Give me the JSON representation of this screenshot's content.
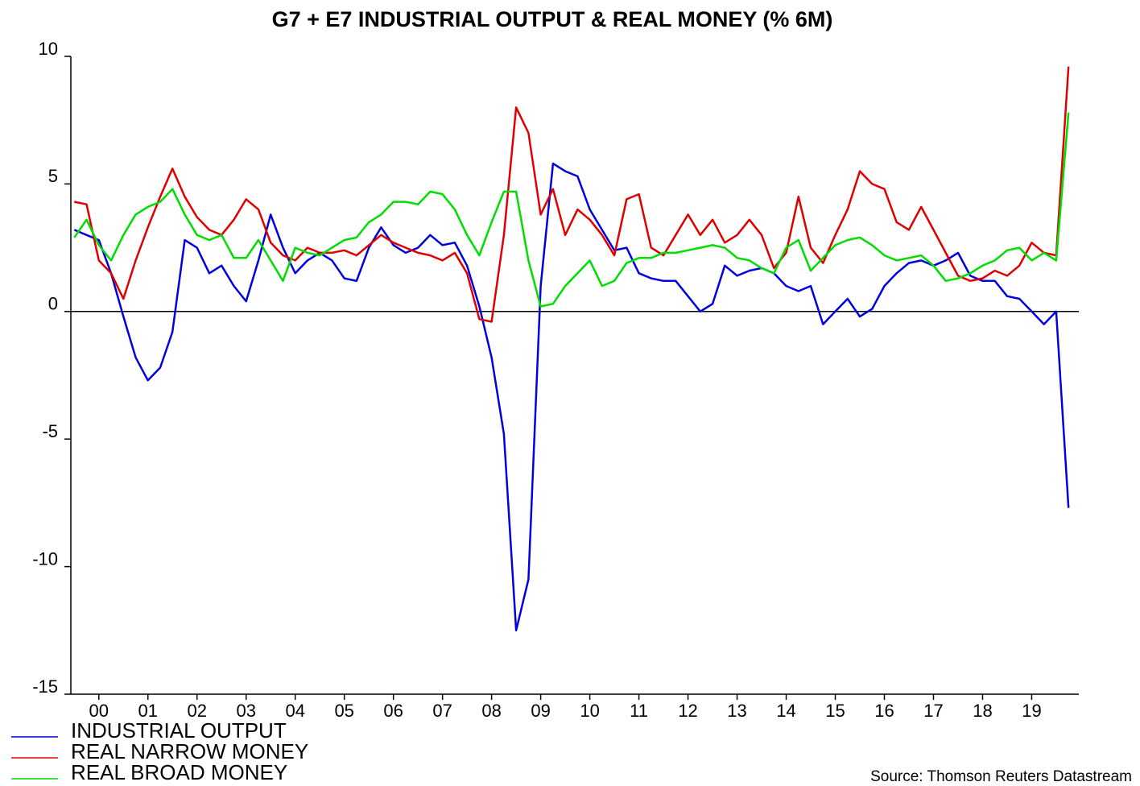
{
  "chart_data": {
    "type": "line",
    "title": "G7 + E7 INDUSTRIAL OUTPUT & REAL MONEY (% 6M)",
    "source": "Source: Thomson Reuters Datastream",
    "x": [
      0,
      0.25,
      0.5,
      0.75,
      1,
      1.25,
      1.5,
      1.75,
      2,
      2.25,
      2.5,
      2.75,
      3,
      3.25,
      3.5,
      3.75,
      4,
      4.25,
      4.5,
      4.75,
      5,
      5.25,
      5.5,
      5.75,
      6,
      6.25,
      6.5,
      6.75,
      7,
      7.25,
      7.5,
      7.75,
      8,
      8.25,
      8.5,
      8.75,
      9,
      9.25,
      9.5,
      9.75,
      10,
      10.25,
      10.5,
      10.75,
      11,
      11.25,
      11.5,
      11.75,
      12,
      12.25,
      12.5,
      12.75,
      13,
      13.25,
      13.5,
      13.75,
      14,
      14.25,
      14.5,
      14.75,
      15,
      15.25,
      15.5,
      15.75,
      16,
      16.25,
      16.5,
      16.75,
      17,
      17.25,
      17.5,
      17.75,
      18,
      18.25,
      18.5,
      18.75,
      19,
      19.25,
      19.5,
      19.75,
      20,
      20.25
    ],
    "series": [
      {
        "name": "INDUSTRIAL OUTPUT",
        "color": "#0000e0",
        "values": [
          3.2,
          3.0,
          2.8,
          1.5,
          -0.2,
          -1.8,
          -2.7,
          -2.2,
          -0.8,
          2.8,
          2.5,
          1.5,
          1.8,
          1.0,
          0.4,
          2.0,
          3.8,
          2.5,
          1.5,
          2.0,
          2.3,
          2.0,
          1.3,
          1.2,
          2.5,
          3.3,
          2.6,
          2.3,
          2.5,
          3.0,
          2.6,
          2.7,
          1.8,
          0.2,
          -1.8,
          -4.8,
          -12.5,
          -10.5,
          1.0,
          5.8,
          5.5,
          5.3,
          4.0,
          3.2,
          2.4,
          2.5,
          1.5,
          1.3,
          1.2,
          1.2,
          0.6,
          0.0,
          0.3,
          1.8,
          1.4,
          1.6,
          1.7,
          1.5,
          1.0,
          0.8,
          1.0,
          -0.5,
          0.0,
          0.5,
          -0.2,
          0.1,
          1.0,
          1.5,
          1.9,
          2.0,
          1.8,
          2.0,
          2.3,
          1.4,
          1.2,
          1.2,
          0.6,
          0.5,
          0.0,
          -0.5,
          0.0,
          -7.7
        ]
      },
      {
        "name": "REAL NARROW MONEY",
        "color": "#e00000",
        "values": [
          4.3,
          4.2,
          2.0,
          1.5,
          0.5,
          2.0,
          3.3,
          4.5,
          5.6,
          4.5,
          3.7,
          3.2,
          3.0,
          3.6,
          4.4,
          4.0,
          2.7,
          2.2,
          2.0,
          2.5,
          2.3,
          2.3,
          2.4,
          2.2,
          2.6,
          3.0,
          2.7,
          2.5,
          2.3,
          2.2,
          2.0,
          2.3,
          1.5,
          -0.3,
          -0.4,
          3.0,
          8.0,
          7.0,
          3.8,
          4.8,
          3.0,
          4.0,
          3.6,
          3.0,
          2.2,
          4.4,
          4.6,
          2.5,
          2.2,
          3.0,
          3.8,
          3.0,
          3.6,
          2.7,
          3.0,
          3.6,
          3.0,
          1.7,
          2.3,
          4.5,
          2.5,
          1.9,
          3.0,
          4.0,
          5.5,
          5.0,
          4.8,
          3.5,
          3.2,
          4.1,
          3.2,
          2.3,
          1.4,
          1.2,
          1.3,
          1.6,
          1.4,
          1.8,
          2.7,
          2.3,
          2.2,
          9.6
        ]
      },
      {
        "name": "REAL BROAD MONEY",
        "color": "#00dd00",
        "values": [
          2.9,
          3.6,
          2.6,
          2.0,
          3.0,
          3.8,
          4.1,
          4.3,
          4.8,
          3.8,
          3.0,
          2.8,
          3.0,
          2.1,
          2.1,
          2.8,
          2.0,
          1.2,
          2.5,
          2.3,
          2.2,
          2.5,
          2.8,
          2.9,
          3.5,
          3.8,
          4.3,
          4.3,
          4.2,
          4.7,
          4.6,
          4.0,
          3.0,
          2.2,
          3.5,
          4.7,
          4.7,
          2.0,
          0.2,
          0.3,
          1.0,
          1.5,
          2.0,
          1.0,
          1.2,
          1.9,
          2.1,
          2.1,
          2.3,
          2.3,
          2.4,
          2.5,
          2.6,
          2.5,
          2.1,
          2.0,
          1.7,
          1.5,
          2.5,
          2.8,
          1.6,
          2.1,
          2.6,
          2.8,
          2.9,
          2.6,
          2.2,
          2.0,
          2.1,
          2.2,
          1.8,
          1.2,
          1.3,
          1.5,
          1.8,
          2.0,
          2.4,
          2.5,
          2.0,
          2.3,
          2.0,
          7.8
        ]
      }
    ],
    "xlim": [
      -0.07,
      20.46
    ],
    "xticks": [
      {
        "value": 0.5,
        "label": "00"
      },
      {
        "value": 1.5,
        "label": "01"
      },
      {
        "value": 2.5,
        "label": "02"
      },
      {
        "value": 3.5,
        "label": "03"
      },
      {
        "value": 4.5,
        "label": "04"
      },
      {
        "value": 5.5,
        "label": "05"
      },
      {
        "value": 6.5,
        "label": "06"
      },
      {
        "value": 7.5,
        "label": "07"
      },
      {
        "value": 8.5,
        "label": "08"
      },
      {
        "value": 9.5,
        "label": "09"
      },
      {
        "value": 10.5,
        "label": "10"
      },
      {
        "value": 11.5,
        "label": "11"
      },
      {
        "value": 12.5,
        "label": "12"
      },
      {
        "value": 13.5,
        "label": "13"
      },
      {
        "value": 14.5,
        "label": "14"
      },
      {
        "value": 15.5,
        "label": "15"
      },
      {
        "value": 16.5,
        "label": "16"
      },
      {
        "value": 17.5,
        "label": "17"
      },
      {
        "value": 18.5,
        "label": "18"
      },
      {
        "value": 19.5,
        "label": "19"
      }
    ],
    "ylim": [
      -15,
      10
    ],
    "yticks": [
      -15,
      -10,
      -5,
      0,
      5,
      10
    ],
    "zero_line": true,
    "legend": "bottom-left"
  }
}
